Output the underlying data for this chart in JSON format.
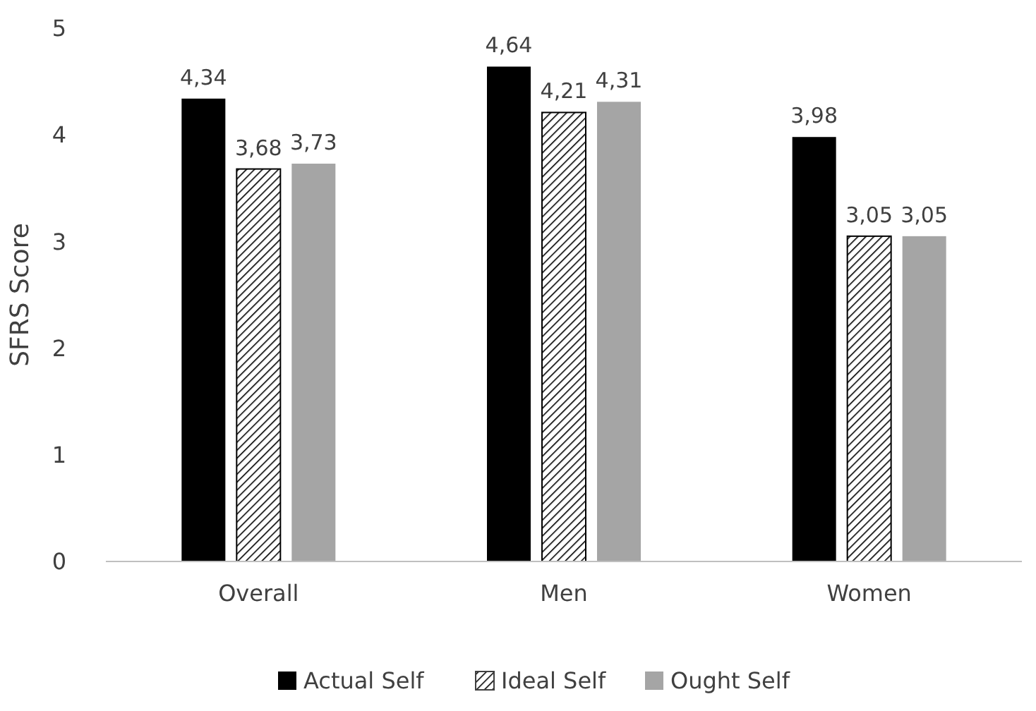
{
  "chart_data": {
    "type": "bar",
    "ylabel": "SFRS Score",
    "categories": [
      "Overall",
      "Men",
      "Women"
    ],
    "series": [
      {
        "name": "Actual Self",
        "color": "#000000",
        "values": [
          4.34,
          4.64,
          3.98
        ],
        "value_labels": [
          "4,34",
          "4,64",
          "3,98"
        ]
      },
      {
        "name": "Ideal Self",
        "color": "#000000",
        "values": [
          3.68,
          4.21,
          3.05
        ],
        "value_labels": [
          "3,68",
          "4,21",
          "3,05"
        ]
      },
      {
        "name": "Ought Self",
        "color": "#a5a5a5",
        "values": [
          3.73,
          4.31,
          3.05
        ],
        "value_labels": [
          "3,73",
          "4,31",
          "3,05"
        ]
      }
    ],
    "ylim": [
      0,
      5
    ],
    "yticks": [
      0,
      1,
      2,
      3,
      4,
      5
    ],
    "grid": false,
    "legend": "bottom"
  }
}
